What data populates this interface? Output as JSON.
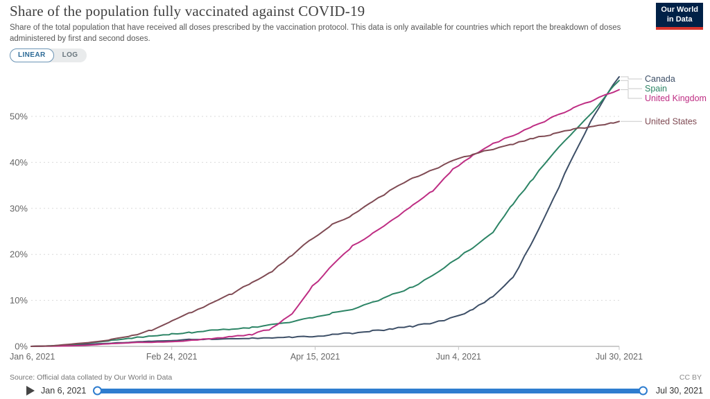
{
  "header": {
    "title": "Share of the population fully vaccinated against COVID-19",
    "subtitle": "Share of the total population that have received all doses prescribed by the vaccination protocol. This data is only available for countries which report the breakdown of doses administered by first and second doses.",
    "logo_line1": "Our World",
    "logo_line2": "in Data"
  },
  "toggle": {
    "linear_label": "LINEAR",
    "log_label": "LOG"
  },
  "footer": {
    "source": "Source: Official data collated by Our World in Data",
    "license": "CC BY"
  },
  "timeline": {
    "start": "Jan 6, 2021",
    "end": "Jul 30, 2021"
  },
  "colors": {
    "accent_blue": "#2E7DCF",
    "logo_navy": "#002147",
    "logo_red": "#D6342C",
    "gridline": "#dadada",
    "axis_text": "#666666"
  },
  "chart_data": {
    "type": "line",
    "title": "Share of the population fully vaccinated against COVID-19",
    "xlabel": "",
    "ylabel": "",
    "ylim": [
      0,
      60
    ],
    "grid": "dashed-horizontal",
    "legend_position": "right-of-line-ends",
    "x_ticks": [
      {
        "label": "Jan 6, 2021",
        "day": 0
      },
      {
        "label": "Feb 24, 2021",
        "day": 49
      },
      {
        "label": "Apr 15, 2021",
        "day": 99
      },
      {
        "label": "Jun 4, 2021",
        "day": 149
      },
      {
        "label": "Jul 30, 2021",
        "day": 205
      }
    ],
    "y_ticks": [
      0,
      10,
      20,
      30,
      40,
      50
    ],
    "y_tick_suffix": "%",
    "series": [
      {
        "name": "Canada",
        "color": "#3C4E66",
        "points": [
          [
            0,
            0
          ],
          [
            7,
            0.1
          ],
          [
            14,
            0.3
          ],
          [
            21,
            0.5
          ],
          [
            28,
            0.7
          ],
          [
            35,
            0.9
          ],
          [
            42,
            1.1
          ],
          [
            49,
            1.3
          ],
          [
            56,
            1.5
          ],
          [
            63,
            1.6
          ],
          [
            70,
            1.7
          ],
          [
            77,
            1.8
          ],
          [
            84,
            1.9
          ],
          [
            91,
            2.0
          ],
          [
            98,
            2.2
          ],
          [
            105,
            2.5
          ],
          [
            112,
            2.9
          ],
          [
            119,
            3.3
          ],
          [
            126,
            3.8
          ],
          [
            133,
            4.4
          ],
          [
            140,
            5.1
          ],
          [
            147,
            6.2
          ],
          [
            154,
            8.0
          ],
          [
            161,
            10.8
          ],
          [
            168,
            15.0
          ],
          [
            175,
            23.0
          ],
          [
            182,
            32.0
          ],
          [
            189,
            41.5
          ],
          [
            196,
            50.0
          ],
          [
            203,
            57.0
          ],
          [
            205,
            58.6
          ]
        ]
      },
      {
        "name": "Spain",
        "color": "#2C8465",
        "points": [
          [
            0,
            0
          ],
          [
            7,
            0.1
          ],
          [
            14,
            0.4
          ],
          [
            21,
            0.8
          ],
          [
            28,
            1.3
          ],
          [
            35,
            1.8
          ],
          [
            42,
            2.2
          ],
          [
            49,
            2.6
          ],
          [
            56,
            3.0
          ],
          [
            63,
            3.4
          ],
          [
            70,
            3.7
          ],
          [
            77,
            4.1
          ],
          [
            84,
            4.7
          ],
          [
            91,
            5.4
          ],
          [
            98,
            6.2
          ],
          [
            105,
            7.2
          ],
          [
            112,
            8.0
          ],
          [
            119,
            9.5
          ],
          [
            126,
            11.3
          ],
          [
            133,
            12.9
          ],
          [
            140,
            15.5
          ],
          [
            147,
            18.5
          ],
          [
            154,
            21.5
          ],
          [
            161,
            24.8
          ],
          [
            168,
            31.0
          ],
          [
            175,
            36.5
          ],
          [
            182,
            42.0
          ],
          [
            189,
            46.5
          ],
          [
            196,
            51.0
          ],
          [
            203,
            56.5
          ],
          [
            205,
            57.8
          ]
        ]
      },
      {
        "name": "United Kingdom",
        "color": "#BE2D83",
        "points": [
          [
            0,
            0
          ],
          [
            7,
            0.05
          ],
          [
            14,
            0.1
          ],
          [
            21,
            0.3
          ],
          [
            28,
            0.6
          ],
          [
            35,
            0.8
          ],
          [
            42,
            0.9
          ],
          [
            49,
            1.0
          ],
          [
            56,
            1.3
          ],
          [
            63,
            1.7
          ],
          [
            70,
            2.1
          ],
          [
            77,
            2.6
          ],
          [
            84,
            3.9
          ],
          [
            91,
            7.0
          ],
          [
            98,
            13.0
          ],
          [
            105,
            17.5
          ],
          [
            112,
            21.8
          ],
          [
            119,
            24.5
          ],
          [
            126,
            27.5
          ],
          [
            133,
            30.8
          ],
          [
            140,
            33.8
          ],
          [
            147,
            38.5
          ],
          [
            154,
            41.5
          ],
          [
            161,
            44.0
          ],
          [
            168,
            45.9
          ],
          [
            175,
            47.8
          ],
          [
            182,
            49.8
          ],
          [
            189,
            51.8
          ],
          [
            196,
            53.5
          ],
          [
            203,
            55.4
          ],
          [
            205,
            55.8
          ]
        ]
      },
      {
        "name": "United States",
        "color": "#7F4A53",
        "points": [
          [
            0,
            0
          ],
          [
            7,
            0.1
          ],
          [
            14,
            0.5
          ],
          [
            21,
            0.9
          ],
          [
            28,
            1.5
          ],
          [
            35,
            2.3
          ],
          [
            42,
            3.6
          ],
          [
            49,
            5.5
          ],
          [
            56,
            7.5
          ],
          [
            63,
            9.3
          ],
          [
            70,
            11.5
          ],
          [
            77,
            13.8
          ],
          [
            84,
            16.3
          ],
          [
            91,
            19.8
          ],
          [
            98,
            23.5
          ],
          [
            105,
            26.5
          ],
          [
            112,
            28.5
          ],
          [
            119,
            31.5
          ],
          [
            126,
            34.2
          ],
          [
            133,
            36.5
          ],
          [
            140,
            38.3
          ],
          [
            147,
            40.3
          ],
          [
            154,
            41.8
          ],
          [
            161,
            42.9
          ],
          [
            168,
            44.0
          ],
          [
            175,
            45.2
          ],
          [
            182,
            46.2
          ],
          [
            189,
            47.2
          ],
          [
            196,
            47.9
          ],
          [
            203,
            48.7
          ],
          [
            205,
            48.9
          ]
        ]
      }
    ]
  }
}
